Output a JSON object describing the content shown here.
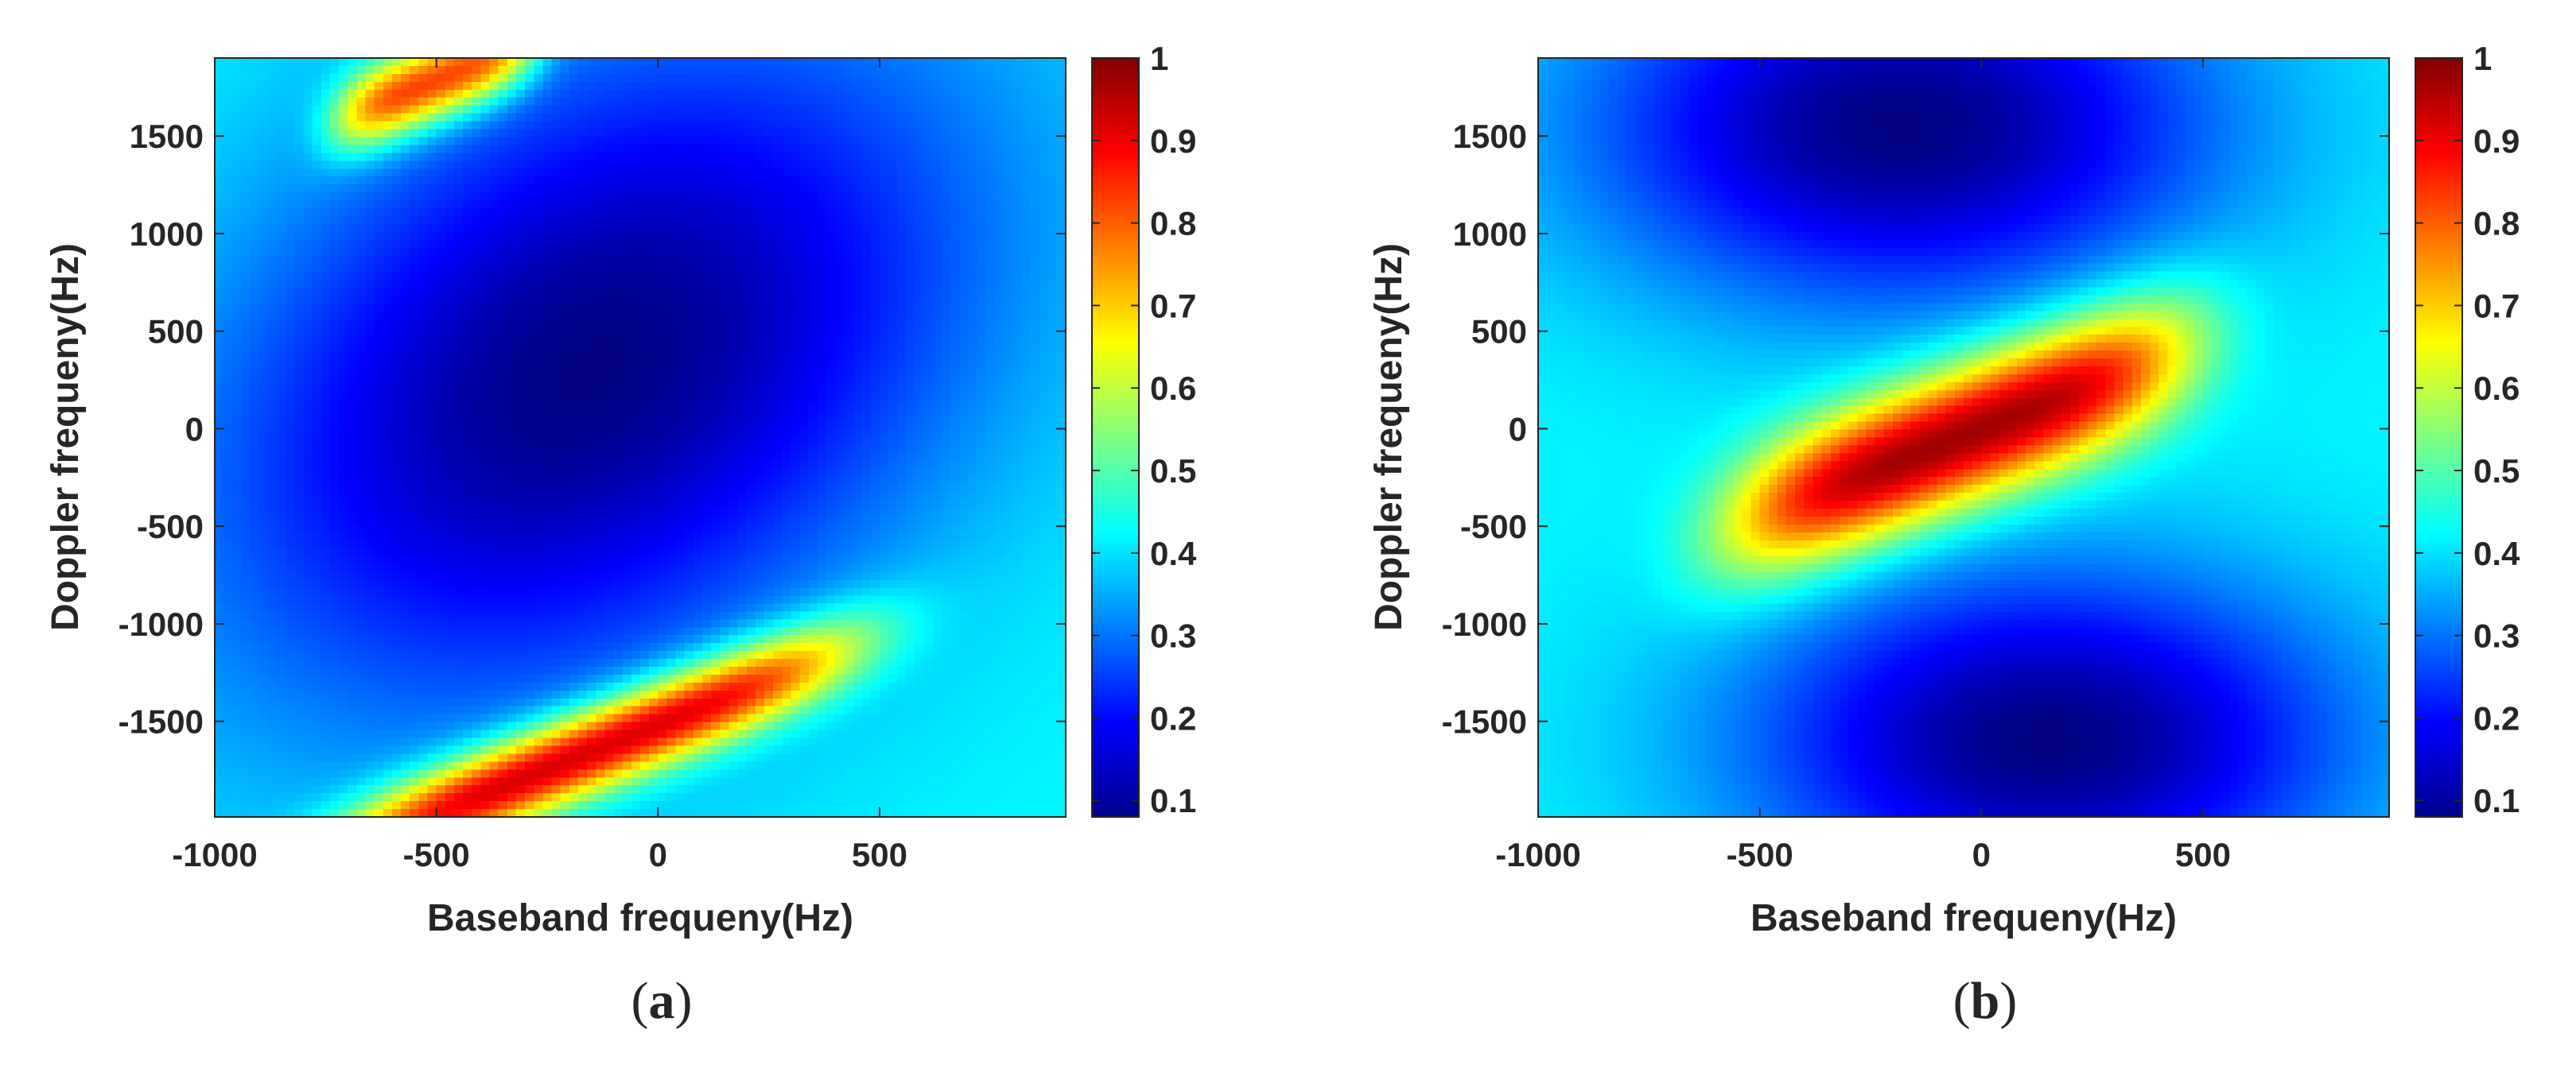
{
  "chart_data": [
    {
      "type": "heatmap",
      "panel_label": {
        "open": "(",
        "letter": "a",
        "close": ")"
      },
      "xlabel": "Baseband frequeny(Hz)",
      "ylabel": "Doppler frequeny(Hz)",
      "xlim": [
        -1000,
        920
      ],
      "ylim": [
        -1990,
        1900
      ],
      "xticks": [
        -1000,
        -500,
        0,
        500
      ],
      "xtick_labels": [
        "-1000",
        "-500",
        "0",
        "500"
      ],
      "yticks": [
        -1500,
        -1000,
        -500,
        0,
        500,
        1000,
        1500
      ],
      "ytick_labels": [
        "-1500",
        "-1000",
        "-500",
        "0",
        "500",
        "1000",
        "1500"
      ],
      "colorbar": {
        "colormap": "jet",
        "clim": [
          0.08,
          1.0
        ],
        "ticks": [
          0.1,
          0.2,
          0.3,
          0.4,
          0.5,
          0.6,
          0.7,
          0.8,
          0.9,
          1
        ],
        "tick_labels": [
          "0.1",
          "0.2",
          "0.3",
          "0.4",
          "0.5",
          "0.6",
          "0.7",
          "0.8",
          "0.9",
          "1"
        ]
      },
      "value_model": {
        "description": "Approximate normalized magnitude: background ~0.42, dark lobe (~0.08) centered near (-150 Hz, 300 Hz), two red ridges near the top-left corner and bottom center",
        "background": 0.42,
        "components": [
          {
            "kind": "ridge",
            "x0": -150,
            "y0": -1650,
            "slope": 0.9,
            "sigma_y": 160,
            "x_center": -150,
            "x_width": 600,
            "amplitude": 0.58
          },
          {
            "kind": "ridge",
            "x0": -500,
            "y0": 1780,
            "slope": 0.9,
            "sigma_y": 150,
            "x_center": -500,
            "x_width": 230,
            "amplitude": 0.5
          },
          {
            "kind": "blob",
            "cx": -150,
            "cy": 300,
            "sx": 620,
            "sy": 1250,
            "rho": 0.35,
            "amplitude": -0.34
          }
        ]
      }
    },
    {
      "type": "heatmap",
      "panel_label": {
        "open": "(",
        "letter": "b",
        "close": ")"
      },
      "xlabel": "Baseband frequeny(Hz)",
      "ylabel": "Doppler frequeny(Hz)",
      "xlim": [
        -1000,
        920
      ],
      "ylim": [
        -1990,
        1900
      ],
      "xticks": [
        -1000,
        -500,
        0,
        500
      ],
      "xtick_labels": [
        "-1000",
        "-500",
        "0",
        "500"
      ],
      "yticks": [
        -1500,
        -1000,
        -500,
        0,
        500,
        1000,
        1500
      ],
      "ytick_labels": [
        "-1500",
        "-1000",
        "-500",
        "0",
        "500",
        "1000",
        "1500"
      ],
      "colorbar": {
        "colormap": "jet",
        "clim": [
          0.08,
          1.0
        ],
        "ticks": [
          0.1,
          0.2,
          0.3,
          0.4,
          0.5,
          0.6,
          0.7,
          0.8,
          0.9,
          1
        ],
        "tick_labels": [
          "0.1",
          "0.2",
          "0.3",
          "0.4",
          "0.5",
          "0.6",
          "0.7",
          "0.8",
          "0.9",
          "1"
        ]
      },
      "value_model": {
        "description": "Approximate normalized magnitude: background ~0.42, red diagonal ridge through the origin (peak ~1.0), dark lobes (~0.08) above-left and below-right",
        "background": 0.42,
        "components": [
          {
            "kind": "ridge",
            "x0": 0,
            "y0": 0,
            "slope": 0.9,
            "sigma_y": 260,
            "x_center": -50,
            "x_width": 520,
            "amplitude": 0.58
          },
          {
            "kind": "blob",
            "cx": -180,
            "cy": 1550,
            "sx": 500,
            "sy": 650,
            "rho": 0.0,
            "amplitude": -0.34
          },
          {
            "kind": "blob",
            "cx": 150,
            "cy": -1600,
            "sx": 480,
            "sy": 620,
            "rho": 0.0,
            "amplitude": -0.34
          }
        ]
      }
    }
  ]
}
